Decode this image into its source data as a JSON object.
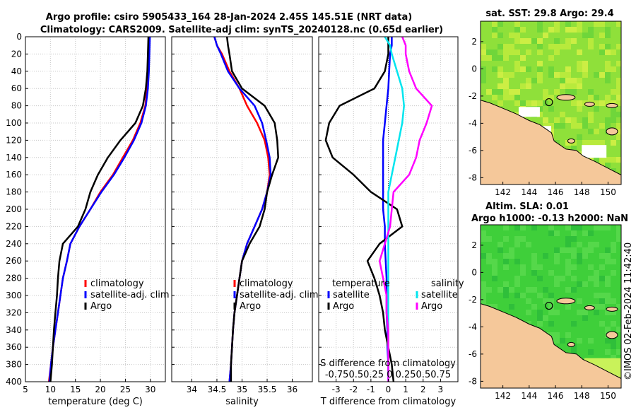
{
  "header": {
    "line1": "Argo profile: csiro 5905433_164 28-Jan-2024 2.45S 145.51E (NRT data)",
    "line2": "Climatology: CARS2009. Satellite-adj clim: synTS_20240128.nc (0.65d earlier)"
  },
  "footer": {
    "timestamp": "©IMOS 02-Feb-2024 11:42:40"
  },
  "colors": {
    "climatology": "#ff0000",
    "satellite": "#0000ff",
    "argo": "#000000",
    "sal_satellite": "#00e5ee",
    "sal_argo": "#ff00ff",
    "land": "#f5c89a",
    "sst_map": "#8fe03a",
    "sla_map": "#3fcf3a"
  },
  "chart_data": [
    {
      "type": "line",
      "title": "",
      "xlabel": "temperature (deg C)",
      "ylabel": "",
      "xlim": [
        5,
        33
      ],
      "ylim": [
        400,
        0
      ],
      "xticks": [
        "5",
        "10",
        "15",
        "20",
        "25",
        "30"
      ],
      "yticks": [
        "0",
        "20",
        "40",
        "60",
        "80",
        "100",
        "120",
        "140",
        "160",
        "180",
        "200",
        "220",
        "240",
        "260",
        "280",
        "300",
        "320",
        "340",
        "360",
        "380",
        "400"
      ],
      "depth": [
        0,
        20,
        40,
        60,
        80,
        100,
        120,
        140,
        160,
        180,
        200,
        220,
        240,
        260,
        280,
        300,
        320,
        340,
        360,
        380,
        400
      ],
      "series": [
        {
          "name": "climatology",
          "values": [
            29.7,
            29.6,
            29.5,
            29.3,
            29.0,
            28.0,
            26.5,
            24.5,
            22.5,
            20.0,
            18.0,
            15.8,
            14.0,
            13.3,
            12.5,
            12.0,
            11.5,
            11.0,
            10.5,
            10.1,
            9.7
          ]
        },
        {
          "name": "satellite-adj. clim",
          "values": [
            29.9,
            29.8,
            29.7,
            29.5,
            29.1,
            28.2,
            26.7,
            24.8,
            22.7,
            20.2,
            18.0,
            15.8,
            14.0,
            13.3,
            12.5,
            12.0,
            11.5,
            11.0,
            10.5,
            10.1,
            9.8
          ]
        },
        {
          "name": "Argo",
          "values": [
            29.6,
            29.5,
            29.4,
            29.1,
            28.5,
            27.0,
            24.0,
            21.5,
            19.5,
            18.0,
            17.0,
            15.5,
            12.5,
            11.8,
            11.5,
            11.3,
            11.0,
            10.7,
            10.5,
            10.3,
            10.0
          ]
        }
      ]
    },
    {
      "type": "line",
      "title": "",
      "xlabel": "salinity",
      "ylabel": "",
      "xlim": [
        33.6,
        36.4
      ],
      "ylim": [
        400,
        0
      ],
      "xticks": [
        "34",
        "34.5",
        "35",
        "35.5",
        "36"
      ],
      "depth": [
        0,
        10,
        20,
        40,
        60,
        80,
        100,
        120,
        140,
        160,
        180,
        200,
        220,
        240,
        260,
        280,
        300,
        320,
        340,
        360,
        380,
        400
      ],
      "series": [
        {
          "name": "climatology",
          "values": [
            34.45,
            34.5,
            34.6,
            34.75,
            34.95,
            35.1,
            35.3,
            35.45,
            35.52,
            35.55,
            35.5,
            35.4,
            35.25,
            35.1,
            35.0,
            34.95,
            34.9,
            34.85,
            34.82,
            34.8,
            34.78,
            34.75
          ]
        },
        {
          "name": "satellite-adj. clim",
          "values": [
            34.45,
            34.5,
            34.58,
            34.72,
            34.95,
            35.25,
            35.4,
            35.48,
            35.55,
            35.57,
            35.5,
            35.4,
            35.25,
            35.1,
            35.0,
            34.95,
            34.9,
            34.85,
            34.82,
            34.8,
            34.78,
            34.75
          ]
        },
        {
          "name": "Argo",
          "values": [
            34.7,
            34.72,
            34.75,
            34.8,
            35.0,
            35.45,
            35.65,
            35.7,
            35.72,
            35.6,
            35.5,
            35.45,
            35.35,
            35.15,
            35.0,
            34.95,
            34.9,
            34.85,
            34.82,
            34.8,
            34.78,
            34.78
          ]
        }
      ]
    },
    {
      "type": "line",
      "title": "",
      "xlabel": "T difference from climatology",
      "ylabel": "",
      "xlim": [
        -4,
        4
      ],
      "ylim": [
        400,
        0
      ],
      "xticks": [
        "-3",
        "-2",
        "-1",
        "0",
        "1",
        "2",
        "3"
      ],
      "secondary_xlabel": "S difference from climatology",
      "secondary_xticks": "-0.750.50.25 0 0.250.50.75",
      "legend": {
        "temperature_title": "temperature",
        "salinity_title": "salinity",
        "temp_items": [
          "satellite",
          "Argo"
        ],
        "sal_items": [
          "satellite",
          "Argo"
        ]
      },
      "depth": [
        0,
        10,
        20,
        40,
        60,
        80,
        100,
        120,
        140,
        160,
        180,
        200,
        220,
        240,
        260,
        280,
        300,
        320,
        340,
        360,
        380,
        400
      ],
      "series": [
        {
          "name": "temperature satellite",
          "values": [
            0.2,
            0.2,
            0.1,
            0.05,
            0.0,
            -0.1,
            -0.2,
            -0.3,
            -0.3,
            -0.3,
            -0.3,
            -0.3,
            -0.2,
            -0.2,
            -0.15,
            -0.1,
            -0.1,
            -0.1,
            -0.05,
            -0.05,
            0.0,
            0.0
          ]
        },
        {
          "name": "temperature Argo",
          "values": [
            0.0,
            0.0,
            0.0,
            -0.2,
            -0.8,
            -2.8,
            -3.4,
            -3.6,
            -3.2,
            -2.0,
            -1.0,
            0.5,
            0.8,
            -0.5,
            -1.2,
            -0.8,
            -0.5,
            -0.3,
            -0.2,
            0.0,
            0.2,
            0.3
          ]
        },
        {
          "name": "salinity satellite",
          "values": [
            -0.2,
            0.1,
            0.2,
            0.5,
            0.8,
            0.9,
            0.8,
            0.6,
            0.4,
            0.2,
            0.0,
            0.0,
            0.0,
            0.0,
            0.0,
            0.0,
            0.0,
            0.0,
            0.0,
            0.0,
            0.0,
            0.0
          ]
        },
        {
          "name": "salinity Argo",
          "values": [
            0.8,
            1.0,
            1.0,
            1.2,
            1.6,
            2.5,
            2.2,
            1.8,
            1.6,
            1.2,
            0.3,
            0.2,
            0.1,
            -0.2,
            -0.5,
            -0.3,
            -0.1,
            -0.1,
            0.0,
            0.0,
            0.0,
            0.0
          ]
        }
      ]
    }
  ],
  "legend1": {
    "items": [
      "climatology",
      "satellite-adj. clim",
      "Argo"
    ]
  },
  "sst_panel": {
    "title": "sat. SST: 29.8 Argo: 29.4",
    "xticks": [
      "142",
      "144",
      "146",
      "148",
      "150"
    ],
    "yticks": [
      "2",
      "0",
      "-2",
      "-4",
      "-6",
      "-8"
    ]
  },
  "sla_panel": {
    "title1": "Altim. SLA: 0.01",
    "title2": "Argo h1000: -0.13 h2000: NaN",
    "xticks": [
      "142",
      "144",
      "146",
      "148",
      "150"
    ],
    "yticks": [
      "2",
      "0",
      "-2",
      "-4",
      "-6",
      "-8"
    ]
  }
}
